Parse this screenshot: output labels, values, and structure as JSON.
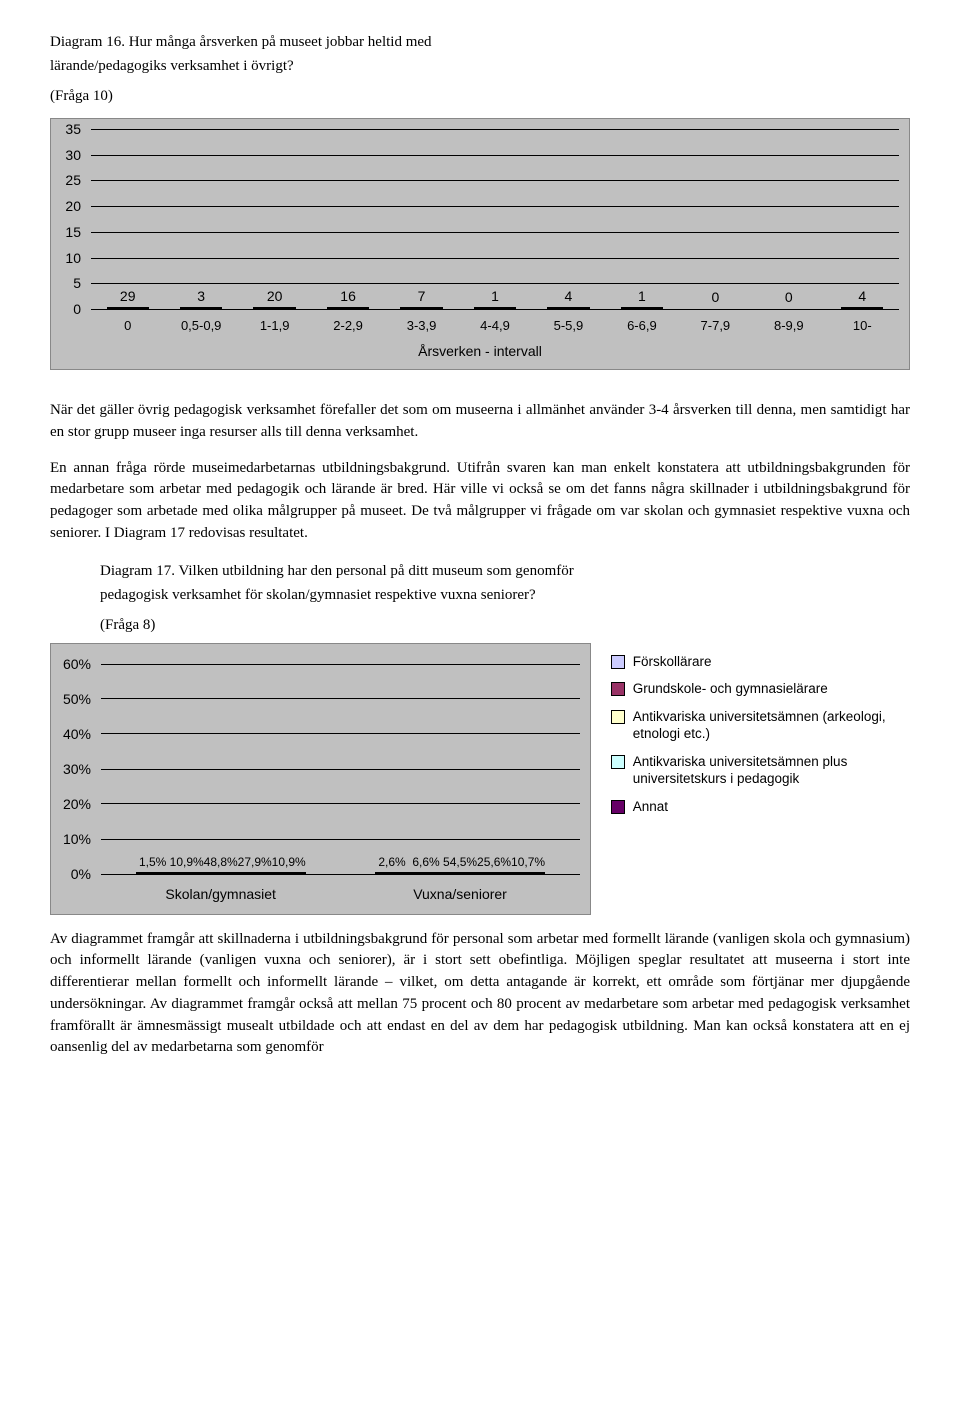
{
  "chart1": {
    "type": "bar",
    "title_line1": "Diagram 16. Hur många årsverken på museet jobbar heltid med",
    "title_line2": "lärande/pedagogiks verksamhet i övrigt?",
    "subtitle": "(Fråga 10)",
    "categories": [
      "0",
      "0,5-0,9",
      "1-1,9",
      "2-2,9",
      "3-3,9",
      "4-4,9",
      "5-5,9",
      "6-6,9",
      "7-7,9",
      "8-9,9",
      "10-"
    ],
    "values": [
      29,
      3,
      20,
      16,
      7,
      1,
      4,
      1,
      0,
      0,
      4
    ],
    "ylim": [
      0,
      35
    ],
    "ytick_step": 5,
    "bar_color": "#9999cc",
    "background_color": "#c0c0c0",
    "xaxis_title": "Årsverken - intervall",
    "label_fontsize": 14
  },
  "para1": "När det gäller övrig pedagogisk verksamhet förefaller det som om museerna i allmänhet använder 3-4 årsverken till denna, men samtidigt har en stor grupp museer inga resurser alls till denna verksamhet.",
  "para2": "En annan fråga rörde museimedarbetarnas utbildningsbakgrund. Utifrån svaren kan man enkelt konstatera att utbildningsbakgrunden för medarbetare som arbetar med pedagogik och lärande är bred. Här ville vi också se om det fanns några skillnader i utbildningsbakgrund för pedagoger som arbetade med olika målgrupper på museet. De två målgrupper vi frågade om var skolan och gymnasiet respektive vuxna och seniorer. I Diagram 17 redovisas resultatet.",
  "chart2": {
    "type": "grouped-bar",
    "title_line1": "Diagram 17. Vilken utbildning har den personal på ditt museum som genomför",
    "title_line2": "pedagogisk verksamhet för skolan/gymnasiet respektive vuxna seniorer?",
    "subtitle": "(Fråga 8)",
    "groups": [
      "Skolan/gymnasiet",
      "Vuxna/seniorer"
    ],
    "series": [
      {
        "label": "Förskollärare",
        "color": "#ccccff",
        "values": [
          1.5,
          2.6
        ],
        "display": [
          "1,5%",
          "2,6%"
        ]
      },
      {
        "label": "Grundskole- och gymnasielärare",
        "color": "#993366",
        "values": [
          10.9,
          6.6
        ],
        "display": [
          "10,9%",
          "6,6%"
        ]
      },
      {
        "label": "Antikvariska universitetsämnen (arkeologi, etnologi etc.)",
        "color": "#ffffcc",
        "values": [
          48.8,
          54.5
        ],
        "display": [
          "48,8%",
          "54,5%"
        ]
      },
      {
        "label": "Antikvariska universitetsämnen plus universitetskurs i pedagogik",
        "color": "#ccffff",
        "values": [
          27.9,
          25.6
        ],
        "display": [
          "27,9%",
          "25,6%"
        ]
      },
      {
        "label": "Annat",
        "color": "#660066",
        "values": [
          10.9,
          10.7
        ],
        "display": [
          "10,9%",
          "10,7%"
        ]
      }
    ],
    "ylim": [
      0,
      60
    ],
    "ytick_step": 10,
    "y_suffix": "%",
    "background_color": "#c0c0c0"
  },
  "para3": "Av diagrammet framgår att skillnaderna i utbildningsbakgrund för personal som arbetar med formellt lärande (vanligen skola och gymnasium) och informellt lärande (vanligen vuxna och seniorer), är i stort sett obefintliga. Möjligen speglar resultatet att museerna i stort inte differentierar mellan formellt och informellt lärande – vilket, om detta antagande är korrekt, ett område som förtjänar mer djupgående undersökningar. Av diagrammet framgår också att mellan 75 procent och 80 procent av medarbetare som arbetar med pedagogisk verksamhet framförallt är ämnesmässigt musealt utbildade och att endast en del av dem har pedagogisk utbildning. Man kan också konstatera att en ej oansenlig del av medarbetarna som genomför"
}
